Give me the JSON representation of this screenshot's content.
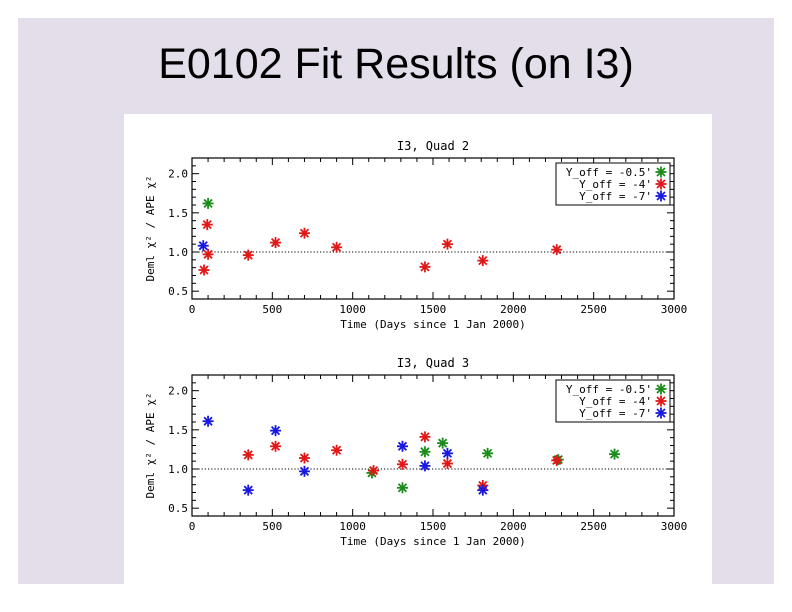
{
  "slide": {
    "title": "E0102 Fit Results (on I3)",
    "background": "#e3deea"
  },
  "chart_data": [
    {
      "type": "scatter",
      "title": "I3, Quad 2",
      "xlabel": "Time (Days since 1 Jan 2000)",
      "ylabel": "Deml χ² / APE χ²",
      "xlim": [
        0,
        3000
      ],
      "ylim": [
        0.4,
        2.2
      ],
      "xticks": [
        "0",
        "500",
        "1000",
        "1500",
        "2000",
        "2500",
        "3000"
      ],
      "yticks": [
        "0.5",
        "1.0",
        "1.5",
        "2.0"
      ],
      "reference_line": 1.0,
      "legend_position": "top-right",
      "series": [
        {
          "name": "Y_off = -0.5'",
          "color": "#1a8c1a",
          "points": [
            [
              100,
              1.62
            ]
          ]
        },
        {
          "name": "Y_off = -4'",
          "color": "#e01818",
          "points": [
            [
              75,
              0.77
            ],
            [
              95,
              1.35
            ],
            [
              100,
              0.97
            ],
            [
              350,
              0.96
            ],
            [
              520,
              1.12
            ],
            [
              700,
              1.24
            ],
            [
              900,
              1.06
            ],
            [
              1450,
              0.81
            ],
            [
              1590,
              1.1
            ],
            [
              1810,
              0.89
            ],
            [
              2270,
              1.03
            ]
          ]
        },
        {
          "name": "Y_off = -7'",
          "color": "#1818e0",
          "points": [
            [
              70,
              1.08
            ]
          ]
        }
      ]
    },
    {
      "type": "scatter",
      "title": "I3, Quad 3",
      "xlabel": "Time (Days since 1 Jan 2000)",
      "ylabel": "Deml χ² / APE χ²",
      "xlim": [
        0,
        3000
      ],
      "ylim": [
        0.4,
        2.2
      ],
      "xticks": [
        "0",
        "500",
        "1000",
        "1500",
        "2000",
        "2500",
        "3000"
      ],
      "yticks": [
        "0.5",
        "1.0",
        "1.5",
        "2.0"
      ],
      "reference_line": 1.0,
      "legend_position": "top-right",
      "series": [
        {
          "name": "Y_off = -0.5'",
          "color": "#1a8c1a",
          "points": [
            [
              1120,
              0.95
            ],
            [
              1310,
              0.76
            ],
            [
              1450,
              1.22
            ],
            [
              1560,
              1.33
            ],
            [
              1840,
              1.2
            ],
            [
              2280,
              1.12
            ],
            [
              2630,
              1.19
            ]
          ]
        },
        {
          "name": "Y_off = -4'",
          "color": "#e01818",
          "points": [
            [
              350,
              1.18
            ],
            [
              520,
              1.29
            ],
            [
              700,
              1.14
            ],
            [
              900,
              1.24
            ],
            [
              1130,
              0.98
            ],
            [
              1310,
              1.06
            ],
            [
              1450,
              1.41
            ],
            [
              1590,
              1.07
            ],
            [
              1810,
              0.79
            ],
            [
              2270,
              1.11
            ]
          ]
        },
        {
          "name": "Y_off = -7'",
          "color": "#1818e0",
          "points": [
            [
              100,
              1.61
            ],
            [
              350,
              0.73
            ],
            [
              520,
              1.49
            ],
            [
              700,
              0.97
            ],
            [
              1310,
              1.29
            ],
            [
              1450,
              1.04
            ],
            [
              1590,
              1.2
            ],
            [
              1810,
              0.73
            ]
          ]
        }
      ]
    }
  ]
}
